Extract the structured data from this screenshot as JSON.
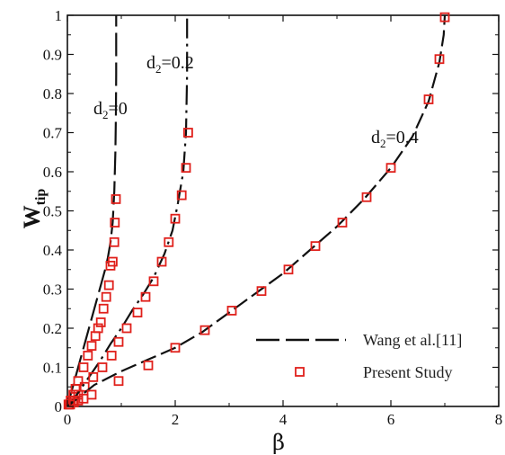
{
  "chart_data": {
    "type": "line",
    "title": "",
    "xlabel": "β",
    "ylabel": "W",
    "ylabel_sub": "tip",
    "xlim": [
      0,
      8
    ],
    "ylim": [
      0,
      1
    ],
    "x_ticks": [
      0,
      2,
      4,
      6,
      8
    ],
    "x_tick_labels": [
      "0",
      "2",
      "4",
      "6",
      "8"
    ],
    "y_ticks": [
      0,
      0.1,
      0.2,
      0.3,
      0.4,
      0.5,
      0.6,
      0.7,
      0.8,
      0.9,
      1.0
    ],
    "y_tick_labels": [
      "0",
      "0.1",
      "0.2",
      "0.3",
      "0.4",
      "0.5",
      "0.6",
      "0.7",
      "0.8",
      "0.9",
      "1"
    ],
    "grid": false,
    "legend_position": "bottom-right",
    "legend": [
      {
        "label": "Wang et al.[11]",
        "style": "dashed-line"
      },
      {
        "label": "Present Study",
        "style": "square-marker"
      }
    ],
    "colors": {
      "line": "#111111",
      "marker": "#e0201b"
    },
    "series": [
      {
        "label_prefix": "d",
        "label_sub": "2",
        "label_value": "=0",
        "line": {
          "x": [
            0,
            0.1,
            0.2,
            0.3,
            0.4,
            0.5,
            0.6,
            0.7,
            0.75,
            0.8,
            0.84,
            0.87,
            0.89,
            0.9,
            0.905,
            0.905
          ],
          "y": [
            0,
            0.05,
            0.1,
            0.15,
            0.2,
            0.25,
            0.3,
            0.35,
            0.38,
            0.42,
            0.47,
            0.55,
            0.65,
            0.75,
            0.85,
            1.0
          ]
        },
        "markers": {
          "x": [
            0.02,
            0.06,
            0.11,
            0.15,
            0.2,
            0.3,
            0.38,
            0.45,
            0.52,
            0.57,
            0.62,
            0.67,
            0.72,
            0.77,
            0.8,
            0.84,
            0.87,
            0.88,
            0.9
          ],
          "y": [
            0.005,
            0.015,
            0.03,
            0.045,
            0.065,
            0.1,
            0.13,
            0.155,
            0.18,
            0.2,
            0.215,
            0.25,
            0.28,
            0.31,
            0.36,
            0.37,
            0.42,
            0.47,
            0.53
          ]
        }
      },
      {
        "label_prefix": "d",
        "label_sub": "2",
        "label_value": "=0.2",
        "line": {
          "x": [
            0,
            0.2,
            0.4,
            0.6,
            0.8,
            1.0,
            1.2,
            1.4,
            1.6,
            1.8,
            1.95,
            2.05,
            2.15,
            2.2,
            2.22,
            2.22
          ],
          "y": [
            0,
            0.035,
            0.075,
            0.115,
            0.16,
            0.2,
            0.245,
            0.285,
            0.33,
            0.39,
            0.45,
            0.52,
            0.6,
            0.7,
            0.85,
            1.0
          ]
        },
        "markers": {
          "x": [
            0.03,
            0.1,
            0.2,
            0.32,
            0.48,
            0.65,
            0.82,
            0.95,
            1.1,
            1.3,
            1.45,
            1.6,
            1.75,
            1.88,
            2.0,
            2.12,
            2.2,
            2.24
          ],
          "y": [
            0.005,
            0.015,
            0.03,
            0.05,
            0.075,
            0.1,
            0.13,
            0.165,
            0.2,
            0.24,
            0.28,
            0.32,
            0.37,
            0.42,
            0.48,
            0.54,
            0.61,
            0.7
          ]
        }
      },
      {
        "label_prefix": "d",
        "label_sub": "2",
        "label_value": "=0.4",
        "line": {
          "x": [
            0,
            0.5,
            1.0,
            1.5,
            2.0,
            2.5,
            3.0,
            3.5,
            4.0,
            4.5,
            5.0,
            5.5,
            6.0,
            6.4,
            6.7,
            6.9,
            6.98,
            7.0
          ],
          "y": [
            0,
            0.055,
            0.09,
            0.12,
            0.15,
            0.19,
            0.24,
            0.29,
            0.34,
            0.4,
            0.46,
            0.53,
            0.61,
            0.69,
            0.78,
            0.88,
            0.95,
            1.0
          ]
        },
        "markers": {
          "x": [
            0.05,
            0.12,
            0.2,
            0.3,
            0.45,
            0.95,
            1.5,
            2.0,
            2.55,
            3.05,
            3.6,
            4.1,
            4.6,
            5.1,
            5.55,
            6.0,
            6.7,
            6.9,
            7.0
          ],
          "y": [
            0.005,
            0.01,
            0.015,
            0.02,
            0.03,
            0.065,
            0.105,
            0.15,
            0.195,
            0.245,
            0.295,
            0.35,
            0.41,
            0.47,
            0.535,
            0.61,
            0.785,
            0.888,
            0.995
          ]
        }
      }
    ]
  }
}
